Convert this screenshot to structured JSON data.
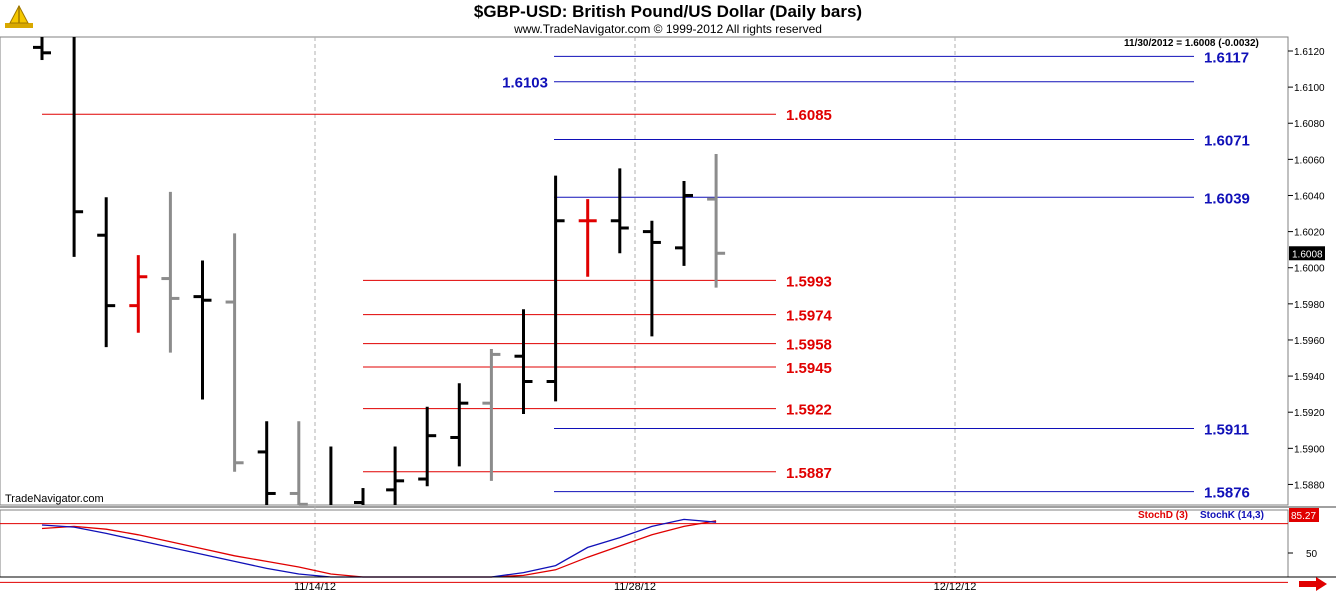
{
  "header": {
    "title": "$GBP-USD:  British Pound/US Dollar  (Daily bars)",
    "copyright": "www.TradeNavigator.com © 1999-2012 All rights reserved",
    "quote": "11/30/2012 = 1.6008 (-0.0032)",
    "brand": "TradeNavigator.com"
  },
  "chart_data": {
    "type": "ohlc",
    "title": "$GBP-USD:  British Pound/US Dollar  (Daily bars)",
    "ylim": [
      1.5865,
      1.6128
    ],
    "y_ticks": [
      "1.6120",
      "1.6100",
      "1.6080",
      "1.6060",
      "1.6040",
      "1.6020",
      "1.6000",
      "1.5980",
      "1.5960",
      "1.5940",
      "1.5920",
      "1.5900",
      "1.5880"
    ],
    "x_labels": [
      "11/14/12",
      "11/28/12",
      "12/12/12"
    ],
    "current_price": "1.6008",
    "bars": [
      {
        "o": 1.6122,
        "h": 1.613,
        "l": 1.6115,
        "c": 1.6119,
        "color": "black"
      },
      {
        "o": 1.613,
        "h": 1.613,
        "l": 1.6006,
        "c": 1.6031,
        "color": "black"
      },
      {
        "o": 1.6018,
        "h": 1.6039,
        "l": 1.5956,
        "c": 1.5979,
        "color": "black"
      },
      {
        "o": 1.5979,
        "h": 1.6007,
        "l": 1.5964,
        "c": 1.5995,
        "color": "red"
      },
      {
        "o": 1.5994,
        "h": 1.6042,
        "l": 1.5953,
        "c": 1.5983,
        "color": "gray"
      },
      {
        "o": 1.5984,
        "h": 1.6004,
        "l": 1.5927,
        "c": 1.5982,
        "color": "black"
      },
      {
        "o": 1.5981,
        "h": 1.6019,
        "l": 1.5887,
        "c": 1.5892,
        "color": "gray"
      },
      {
        "o": 1.5898,
        "h": 1.5915,
        "l": 1.5865,
        "c": 1.5875,
        "color": "black"
      },
      {
        "o": 1.5875,
        "h": 1.5915,
        "l": 1.5865,
        "c": 1.5869,
        "color": "gray"
      },
      {
        "o": 1.5867,
        "h": 1.5901,
        "l": 1.5865,
        "c": 1.5867,
        "color": "black"
      },
      {
        "o": 1.587,
        "h": 1.5878,
        "l": 1.5865,
        "c": 1.5865,
        "color": "black"
      },
      {
        "o": 1.5877,
        "h": 1.5901,
        "l": 1.5865,
        "c": 1.5882,
        "color": "black"
      },
      {
        "o": 1.5883,
        "h": 1.5923,
        "l": 1.5879,
        "c": 1.5907,
        "color": "black"
      },
      {
        "o": 1.5906,
        "h": 1.5936,
        "l": 1.589,
        "c": 1.5925,
        "color": "black"
      },
      {
        "o": 1.5925,
        "h": 1.5955,
        "l": 1.5882,
        "c": 1.5952,
        "color": "gray"
      },
      {
        "o": 1.5951,
        "h": 1.5977,
        "l": 1.5919,
        "c": 1.5937,
        "color": "black"
      },
      {
        "o": 1.5937,
        "h": 1.6051,
        "l": 1.5926,
        "c": 1.6026,
        "color": "black"
      },
      {
        "o": 1.6026,
        "h": 1.6038,
        "l": 1.5995,
        "c": 1.6026,
        "color": "red"
      },
      {
        "o": 1.6026,
        "h": 1.6055,
        "l": 1.6008,
        "c": 1.6022,
        "color": "black"
      },
      {
        "o": 1.602,
        "h": 1.6026,
        "l": 1.5962,
        "c": 1.6014,
        "color": "black"
      },
      {
        "o": 1.6011,
        "h": 1.6048,
        "l": 1.6001,
        "c": 1.604,
        "color": "black"
      },
      {
        "o": 1.6038,
        "h": 1.6063,
        "l": 1.5989,
        "c": 1.6008,
        "color": "gray"
      }
    ],
    "levels": [
      {
        "value": 1.6117,
        "label": "1.6117",
        "color": "#1010b8",
        "side": "right"
      },
      {
        "value": 1.6103,
        "label": "1.6103",
        "color": "#1010b8",
        "side": "left"
      },
      {
        "value": 1.6085,
        "label": "1.6085",
        "color": "#e00000",
        "side": "right"
      },
      {
        "value": 1.6071,
        "label": "1.6071",
        "color": "#1010b8",
        "side": "right"
      },
      {
        "value": 1.6039,
        "label": "1.6039",
        "color": "#1010b8",
        "side": "right"
      },
      {
        "value": 1.5993,
        "label": "1.5993",
        "color": "#e00000",
        "side": "right"
      },
      {
        "value": 1.5974,
        "label": "1.5974",
        "color": "#e00000",
        "side": "right"
      },
      {
        "value": 1.5958,
        "label": "1.5958",
        "color": "#e00000",
        "side": "right"
      },
      {
        "value": 1.5945,
        "label": "1.5945",
        "color": "#e00000",
        "side": "right"
      },
      {
        "value": 1.5922,
        "label": "1.5922",
        "color": "#e00000",
        "side": "right"
      },
      {
        "value": 1.5911,
        "label": "1.5911",
        "color": "#1010b8",
        "side": "right"
      },
      {
        "value": 1.5887,
        "label": "1.5887",
        "color": "#e00000",
        "side": "right"
      },
      {
        "value": 1.5876,
        "label": "1.5876",
        "color": "#1010b8",
        "side": "right"
      }
    ],
    "stochastic": {
      "label_d": "StochD (3)",
      "label_k": "StochK (14,3)",
      "value": "85.27",
      "tick": "50",
      "ylim": [
        0,
        100
      ],
      "k_values": [
        90,
        87,
        78,
        68,
        58,
        48,
        38,
        28,
        20,
        12,
        6,
        2,
        0,
        4,
        14,
        22,
        32,
        58,
        72,
        88,
        98,
        94
      ],
      "d_values": [
        85,
        88,
        84,
        76,
        66,
        56,
        46,
        38,
        30,
        20,
        12,
        6,
        2,
        4,
        10,
        18,
        26,
        44,
        60,
        76,
        88,
        96
      ]
    },
    "colors": {
      "up_levels": "#1010b8",
      "down_levels": "#e00000",
      "current_price_bg": "#000000",
      "stoch_value_bg": "#e00000"
    }
  }
}
